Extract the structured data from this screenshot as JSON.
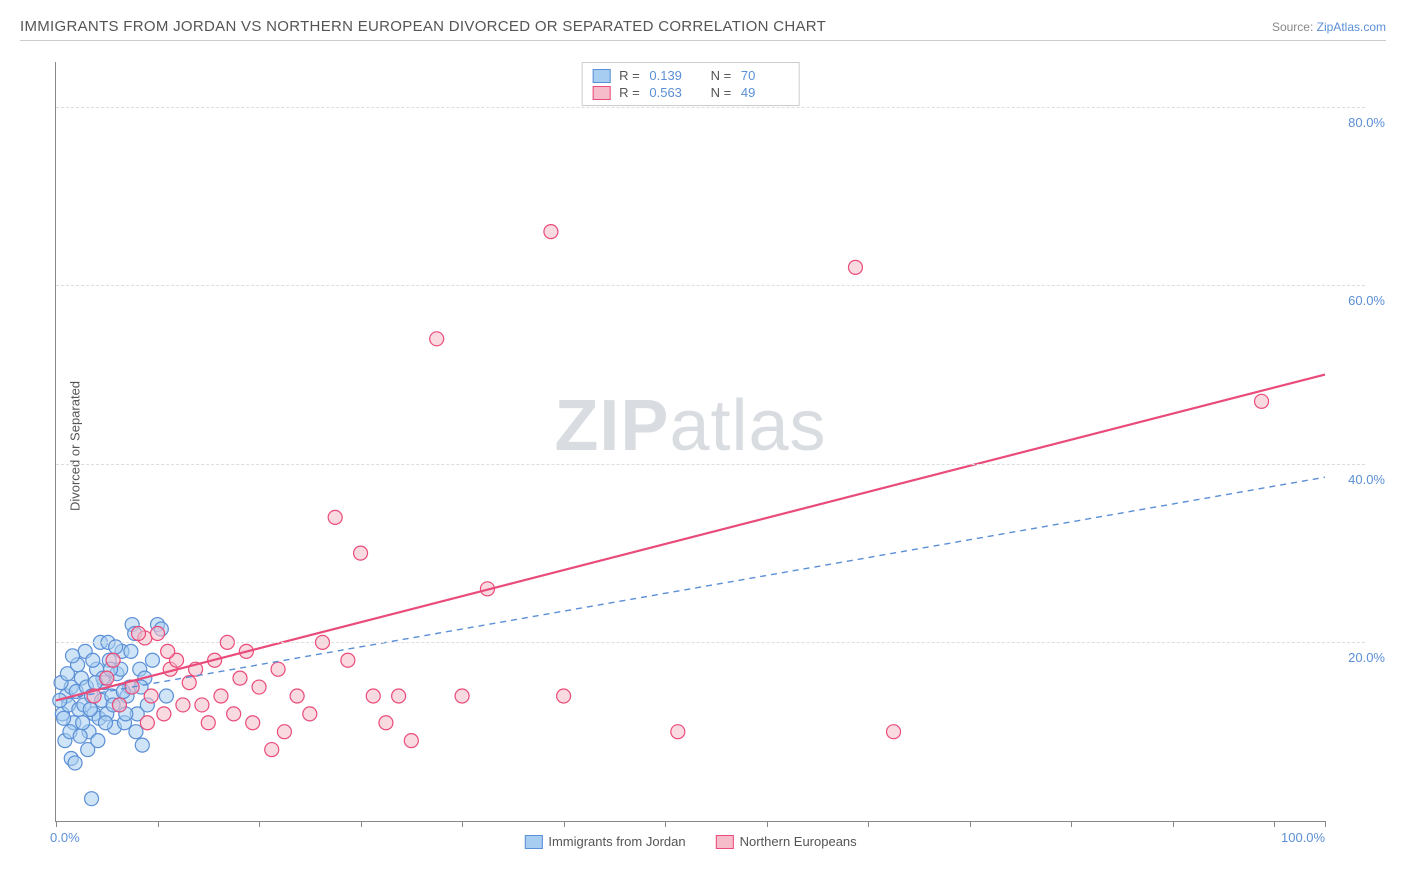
{
  "title": "IMMIGRANTS FROM JORDAN VS NORTHERN EUROPEAN DIVORCED OR SEPARATED CORRELATION CHART",
  "source_prefix": "Source: ",
  "source_name": "ZipAtlas.com",
  "y_axis_label": "Divorced or Separated",
  "watermark_a": "ZIP",
  "watermark_b": "atlas",
  "chart": {
    "type": "scatter",
    "background_color": "#ffffff",
    "grid_color": "#dddddd",
    "axis_color": "#888888",
    "text_color": "#555555",
    "value_color": "#5b8fd6",
    "xlim": [
      0,
      100
    ],
    "ylim": [
      0,
      85
    ],
    "x_ticks": [
      0,
      8,
      16,
      24,
      32,
      40,
      48,
      56,
      64,
      72,
      80,
      88,
      96,
      100
    ],
    "x_tick_labels": {
      "0": "0.0%",
      "100": "100.0%"
    },
    "y_grid": [
      20,
      40,
      60,
      80
    ],
    "y_tick_labels": {
      "20": "20.0%",
      "40": "40.0%",
      "60": "60.0%",
      "80": "80.0%"
    },
    "marker_radius": 7,
    "marker_stroke_width": 1.2,
    "series": [
      {
        "name": "Immigrants from Jordan",
        "fill": "#a7cdf0",
        "stroke": "#5b8fd6",
        "fill_opacity": 0.55,
        "R": "0.139",
        "N": "70",
        "trend": {
          "x1": 0,
          "y1": 13.5,
          "x2": 100,
          "y2": 38.5,
          "stroke": "#5b8fd6",
          "dash": "6 5",
          "width": 1.4
        },
        "points": [
          [
            0.5,
            12
          ],
          [
            0.8,
            14
          ],
          [
            1.0,
            13
          ],
          [
            1.2,
            15
          ],
          [
            1.4,
            11
          ],
          [
            1.6,
            14.5
          ],
          [
            1.8,
            12.5
          ],
          [
            2.0,
            16
          ],
          [
            2.2,
            13
          ],
          [
            2.4,
            15
          ],
          [
            2.6,
            10
          ],
          [
            2.8,
            14
          ],
          [
            3.0,
            12
          ],
          [
            3.2,
            17
          ],
          [
            3.4,
            11.5
          ],
          [
            3.6,
            13.5
          ],
          [
            3.8,
            15.5
          ],
          [
            4.0,
            12
          ],
          [
            4.2,
            18
          ],
          [
            4.4,
            14
          ],
          [
            4.6,
            10.5
          ],
          [
            4.8,
            16.5
          ],
          [
            5.0,
            13
          ],
          [
            5.2,
            19
          ],
          [
            5.4,
            11
          ],
          [
            5.6,
            14
          ],
          [
            5.8,
            15
          ],
          [
            6.0,
            22
          ],
          [
            6.2,
            21
          ],
          [
            6.4,
            12
          ],
          [
            6.6,
            17
          ],
          [
            6.8,
            8.5
          ],
          [
            7.0,
            16
          ],
          [
            7.2,
            13
          ],
          [
            7.6,
            18
          ],
          [
            8.0,
            22
          ],
          [
            8.3,
            21.5
          ],
          [
            8.7,
            14
          ],
          [
            2.5,
            8
          ],
          [
            2.8,
            2.5
          ],
          [
            1.2,
            7
          ],
          [
            0.7,
            9
          ],
          [
            1.5,
            6.5
          ],
          [
            2.3,
            19
          ],
          [
            3.5,
            20
          ],
          [
            0.4,
            15.5
          ],
          [
            0.9,
            16.5
          ],
          [
            1.1,
            10
          ],
          [
            1.7,
            17.5
          ],
          [
            2.1,
            11
          ],
          [
            2.9,
            18
          ],
          [
            3.3,
            9
          ],
          [
            3.7,
            16
          ],
          [
            4.1,
            20
          ],
          [
            4.5,
            13
          ],
          [
            5.1,
            17
          ],
          [
            5.5,
            12
          ],
          [
            5.9,
            19
          ],
          [
            6.3,
            10
          ],
          [
            6.7,
            15
          ],
          [
            0.3,
            13.5
          ],
          [
            0.6,
            11.5
          ],
          [
            1.3,
            18.5
          ],
          [
            1.9,
            9.5
          ],
          [
            2.7,
            12.5
          ],
          [
            3.1,
            15.5
          ],
          [
            3.9,
            11
          ],
          [
            4.3,
            17
          ],
          [
            4.7,
            19.5
          ],
          [
            5.3,
            14.5
          ]
        ]
      },
      {
        "name": "Northern Europeans",
        "fill": "#f6bcc9",
        "stroke": "#e94b7a",
        "fill_opacity": 0.55,
        "R": "0.563",
        "N": "49",
        "trend": {
          "x1": 0,
          "y1": 13.5,
          "x2": 100,
          "y2": 50.0,
          "stroke": "#e94b7a",
          "dash": "",
          "width": 2.2
        },
        "points": [
          [
            3,
            14
          ],
          [
            4,
            16
          ],
          [
            5,
            13
          ],
          [
            6,
            15
          ],
          [
            7,
            20.5
          ],
          [
            7.5,
            14
          ],
          [
            8,
            21
          ],
          [
            8.5,
            12
          ],
          [
            9,
            17
          ],
          [
            9.5,
            18
          ],
          [
            10,
            13
          ],
          [
            10.5,
            15.5
          ],
          [
            11,
            17
          ],
          [
            12,
            11
          ],
          [
            12.5,
            18
          ],
          [
            13,
            14
          ],
          [
            14,
            12
          ],
          [
            14.5,
            16
          ],
          [
            15,
            19
          ],
          [
            15.5,
            11
          ],
          [
            17,
            8
          ],
          [
            18,
            10
          ],
          [
            19,
            14
          ],
          [
            20,
            12
          ],
          [
            21,
            20
          ],
          [
            22,
            34
          ],
          [
            23,
            18
          ],
          [
            24,
            30
          ],
          [
            25,
            14
          ],
          [
            26,
            11
          ],
          [
            27,
            14
          ],
          [
            28,
            9
          ],
          [
            30,
            54
          ],
          [
            32,
            14
          ],
          [
            34,
            26
          ],
          [
            39,
            66
          ],
          [
            40,
            14
          ],
          [
            49,
            10
          ],
          [
            63,
            62
          ],
          [
            66,
            10
          ],
          [
            95,
            47
          ],
          [
            6.5,
            21
          ],
          [
            7.2,
            11
          ],
          [
            8.8,
            19
          ],
          [
            11.5,
            13
          ],
          [
            13.5,
            20
          ],
          [
            16,
            15
          ],
          [
            17.5,
            17
          ],
          [
            4.5,
            18
          ]
        ]
      }
    ],
    "legend_top": {
      "R_label": "R  =",
      "N_label": "N  ="
    },
    "legend_bottom_labels": [
      "Immigrants from Jordan",
      "Northern Europeans"
    ]
  }
}
